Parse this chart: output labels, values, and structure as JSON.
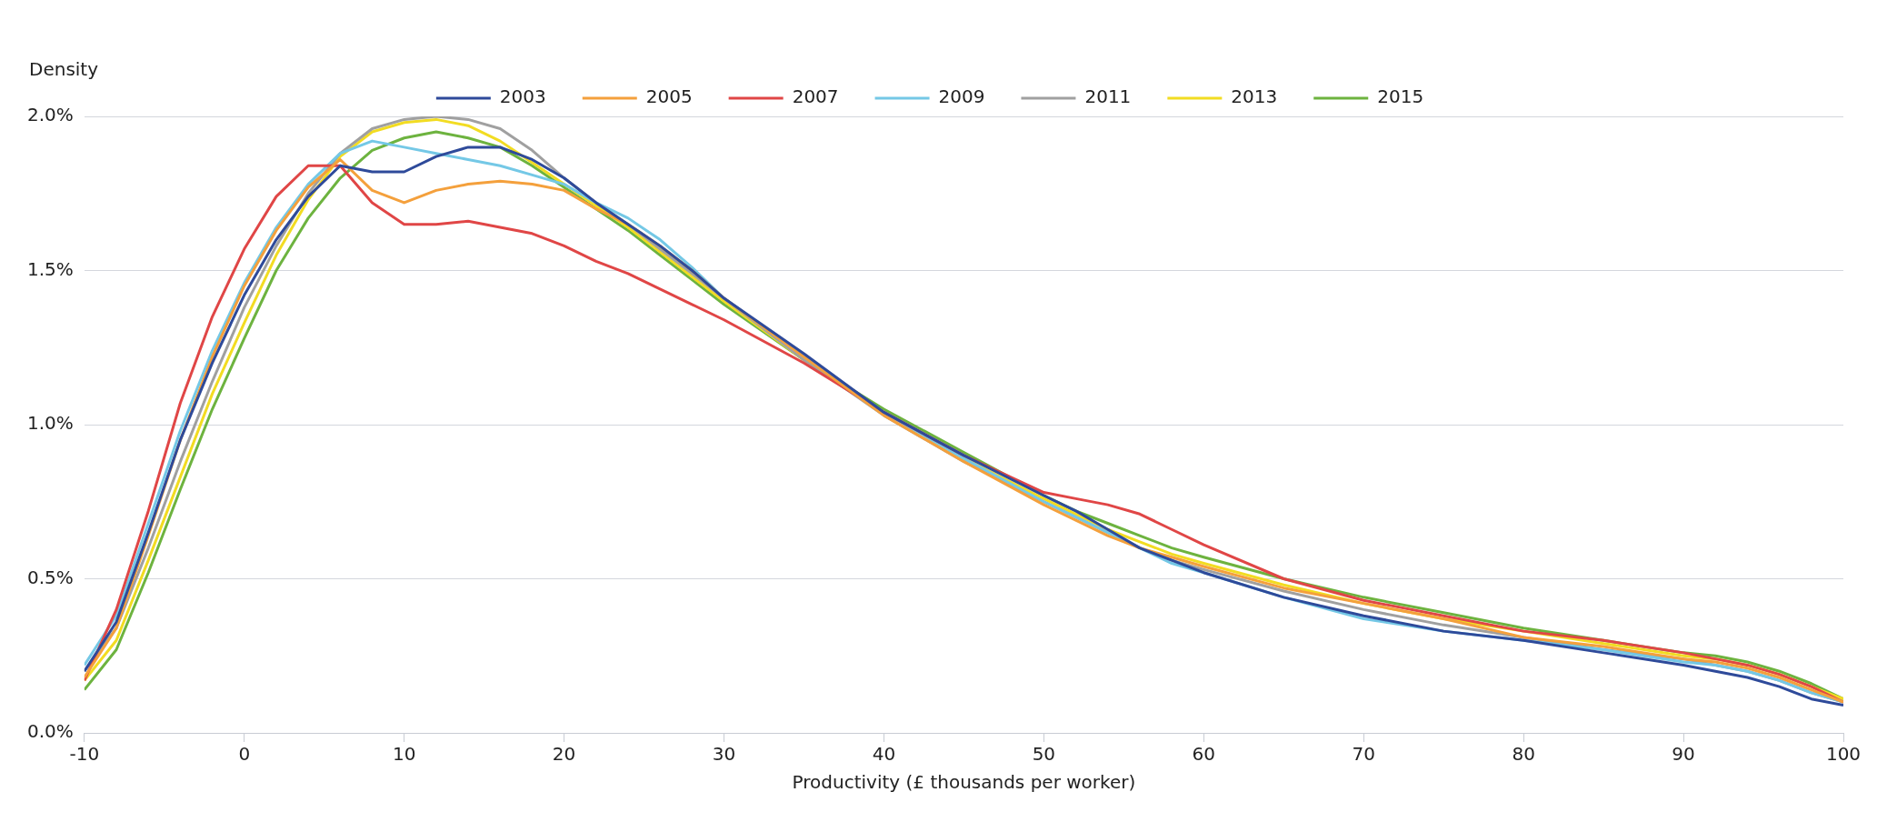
{
  "chart_data": {
    "type": "line",
    "xlabel": "Productivity (£ thousands per worker)",
    "ylabel": "Density",
    "x": [
      -10,
      -8,
      -6,
      -4,
      -2,
      0,
      2,
      4,
      6,
      8,
      10,
      12,
      14,
      16,
      18,
      20,
      22,
      24,
      26,
      28,
      30,
      35,
      40,
      45,
      50,
      52,
      54,
      56,
      58,
      60,
      65,
      70,
      75,
      80,
      85,
      90,
      92,
      94,
      96,
      98,
      100
    ],
    "series": [
      {
        "name": "2003",
        "color": "#2e4a9a",
        "values": [
          0.2,
          0.36,
          0.65,
          0.95,
          1.2,
          1.42,
          1.6,
          1.74,
          1.84,
          1.82,
          1.82,
          1.87,
          1.9,
          1.9,
          1.86,
          1.8,
          1.72,
          1.65,
          1.58,
          1.5,
          1.41,
          1.23,
          1.04,
          0.9,
          0.77,
          0.72,
          0.66,
          0.6,
          0.56,
          0.52,
          0.44,
          0.38,
          0.33,
          0.3,
          0.26,
          0.22,
          0.2,
          0.18,
          0.15,
          0.11,
          0.09
        ]
      },
      {
        "name": "2005",
        "color": "#f4a03c",
        "values": [
          0.18,
          0.34,
          0.64,
          0.95,
          1.22,
          1.45,
          1.63,
          1.77,
          1.86,
          1.76,
          1.72,
          1.76,
          1.78,
          1.79,
          1.78,
          1.76,
          1.7,
          1.65,
          1.58,
          1.5,
          1.41,
          1.22,
          1.03,
          0.88,
          0.74,
          0.69,
          0.64,
          0.6,
          0.57,
          0.54,
          0.47,
          0.42,
          0.37,
          0.31,
          0.28,
          0.24,
          0.23,
          0.21,
          0.18,
          0.14,
          0.1
        ]
      },
      {
        "name": "2007",
        "color": "#e04646",
        "values": [
          0.17,
          0.4,
          0.72,
          1.07,
          1.35,
          1.57,
          1.74,
          1.84,
          1.84,
          1.72,
          1.65,
          1.65,
          1.66,
          1.64,
          1.62,
          1.58,
          1.53,
          1.49,
          1.44,
          1.39,
          1.34,
          1.2,
          1.04,
          0.9,
          0.78,
          0.76,
          0.74,
          0.71,
          0.66,
          0.61,
          0.5,
          0.43,
          0.38,
          0.33,
          0.3,
          0.26,
          0.24,
          0.22,
          0.19,
          0.15,
          0.1
        ]
      },
      {
        "name": "2009",
        "color": "#74c8e6",
        "values": [
          0.22,
          0.38,
          0.68,
          0.98,
          1.24,
          1.46,
          1.64,
          1.78,
          1.88,
          1.92,
          1.9,
          1.88,
          1.86,
          1.84,
          1.81,
          1.78,
          1.72,
          1.67,
          1.6,
          1.51,
          1.41,
          1.22,
          1.04,
          0.89,
          0.75,
          0.7,
          0.65,
          0.6,
          0.55,
          0.52,
          0.44,
          0.37,
          0.33,
          0.3,
          0.27,
          0.23,
          0.22,
          0.2,
          0.17,
          0.13,
          0.1
        ]
      },
      {
        "name": "2011",
        "color": "#a0a0a0",
        "values": [
          0.2,
          0.34,
          0.6,
          0.88,
          1.14,
          1.38,
          1.58,
          1.75,
          1.88,
          1.96,
          1.99,
          2.0,
          1.99,
          1.96,
          1.89,
          1.8,
          1.72,
          1.65,
          1.57,
          1.49,
          1.41,
          1.21,
          1.03,
          0.88,
          0.75,
          0.7,
          0.65,
          0.6,
          0.56,
          0.53,
          0.46,
          0.4,
          0.35,
          0.31,
          0.27,
          0.24,
          0.22,
          0.2,
          0.17,
          0.13,
          0.1
        ]
      },
      {
        "name": "2013",
        "color": "#f2dc22",
        "values": [
          0.17,
          0.3,
          0.56,
          0.83,
          1.1,
          1.33,
          1.55,
          1.73,
          1.87,
          1.95,
          1.98,
          1.99,
          1.97,
          1.92,
          1.85,
          1.78,
          1.71,
          1.64,
          1.56,
          1.48,
          1.4,
          1.21,
          1.04,
          0.89,
          0.76,
          0.71,
          0.66,
          0.62,
          0.58,
          0.55,
          0.48,
          0.42,
          0.37,
          0.33,
          0.29,
          0.25,
          0.24,
          0.22,
          0.19,
          0.15,
          0.11
        ]
      },
      {
        "name": "2015",
        "color": "#6db33f",
        "values": [
          0.14,
          0.27,
          0.52,
          0.79,
          1.05,
          1.28,
          1.5,
          1.67,
          1.8,
          1.89,
          1.93,
          1.95,
          1.93,
          1.9,
          1.84,
          1.77,
          1.7,
          1.63,
          1.55,
          1.47,
          1.39,
          1.21,
          1.05,
          0.91,
          0.77,
          0.72,
          0.68,
          0.64,
          0.6,
          0.57,
          0.5,
          0.44,
          0.39,
          0.34,
          0.3,
          0.26,
          0.25,
          0.23,
          0.2,
          0.16,
          0.11
        ]
      }
    ],
    "xlim": [
      -10,
      100
    ],
    "xticks": [
      -10,
      0,
      10,
      20,
      30,
      40,
      50,
      60,
      70,
      80,
      90,
      100
    ],
    "ylim": [
      0,
      2
    ],
    "yticks": [
      {
        "value": 0,
        "label": "0.0%"
      },
      {
        "value": 0.5,
        "label": "0.5%"
      },
      {
        "value": 1,
        "label": "1.0%"
      },
      {
        "value": 1.5,
        "label": "1.5%"
      },
      {
        "value": 2,
        "label": "2.0%"
      }
    ],
    "grid": "y",
    "legend": "top",
    "marker": "none",
    "line_style": "solid"
  }
}
